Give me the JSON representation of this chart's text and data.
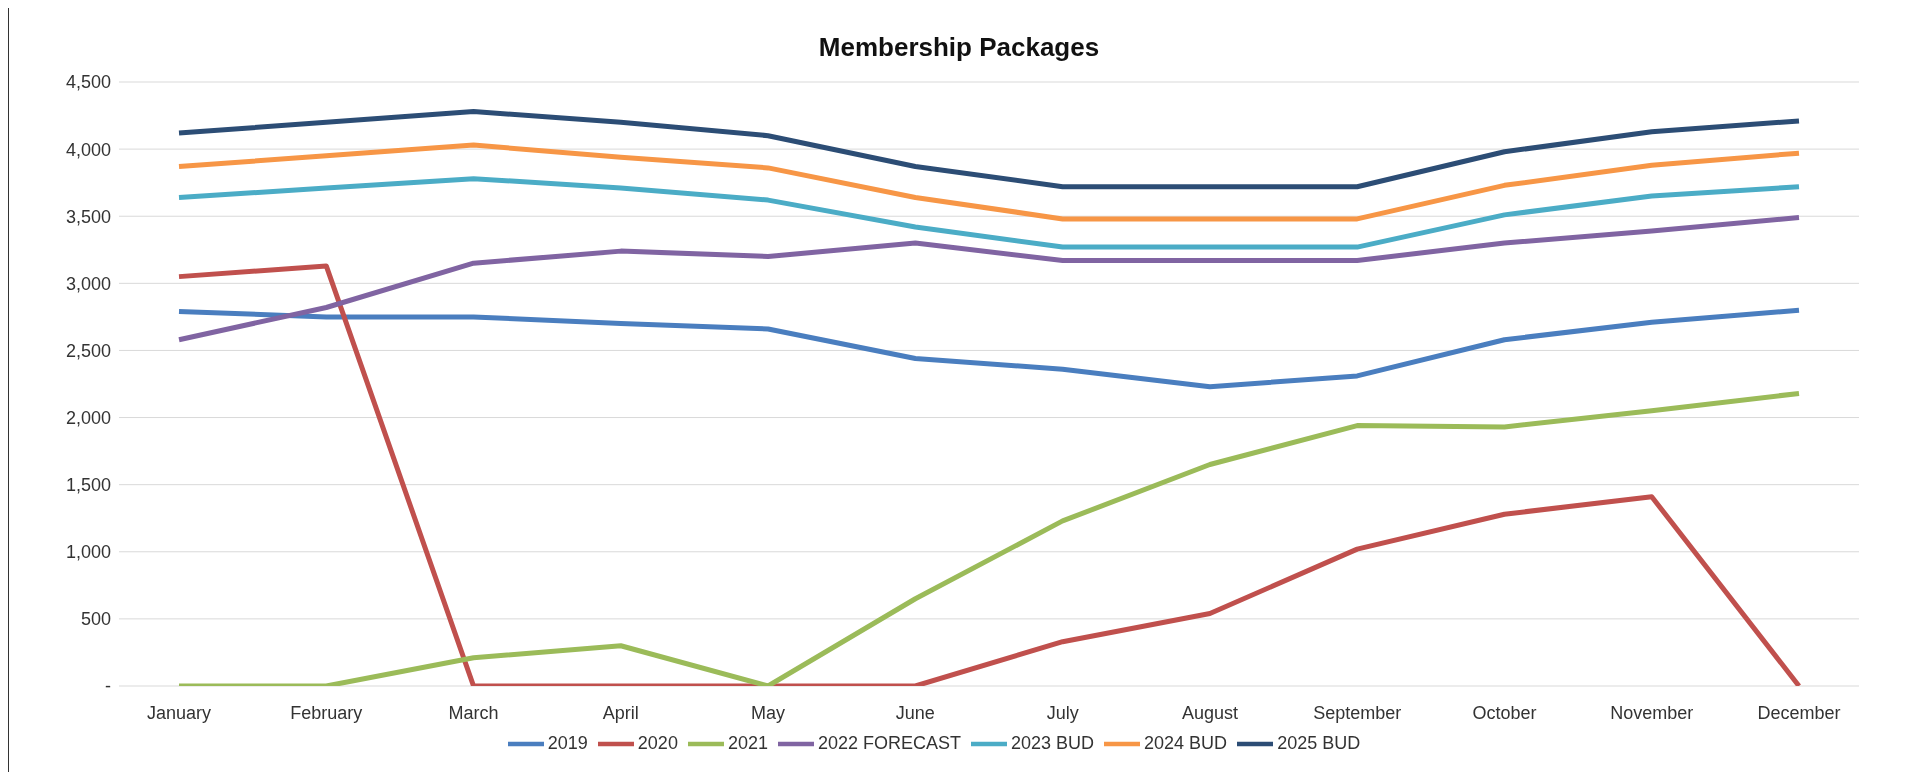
{
  "chart_data": {
    "type": "line",
    "title": "Membership Packages",
    "categories": [
      "January",
      "February",
      "March",
      "April",
      "May",
      "June",
      "July",
      "August",
      "September",
      "October",
      "November",
      "December"
    ],
    "series": [
      {
        "name": "2019",
        "color": "#4a7ebf",
        "values": [
          2790,
          2750,
          2750,
          2700,
          2660,
          2440,
          2360,
          2230,
          2310,
          2580,
          2710,
          2800
        ]
      },
      {
        "name": "2020",
        "color": "#c0504d",
        "values": [
          3050,
          3130,
          0,
          0,
          0,
          0,
          330,
          540,
          1020,
          1280,
          1410,
          0
        ]
      },
      {
        "name": "2021",
        "color": "#9bbb59",
        "values": [
          0,
          0,
          210,
          300,
          0,
          650,
          1230,
          1650,
          1940,
          1930,
          2050,
          2180
        ]
      },
      {
        "name": "2022 FORECAST",
        "color": "#8064a2",
        "values": [
          2580,
          2820,
          3150,
          3240,
          3200,
          3300,
          3170,
          3170,
          3170,
          3300,
          3390,
          3490
        ]
      },
      {
        "name": "2023 BUD",
        "color": "#4bacc6",
        "values": [
          3640,
          3710,
          3780,
          3710,
          3620,
          3420,
          3270,
          3270,
          3270,
          3510,
          3650,
          3720
        ]
      },
      {
        "name": "2024 BUD",
        "color": "#f79646",
        "values": [
          3870,
          3950,
          4030,
          3940,
          3860,
          3640,
          3480,
          3480,
          3480,
          3730,
          3880,
          3970
        ]
      },
      {
        "name": "2025 BUD",
        "color": "#2c4d75",
        "values": [
          4120,
          4200,
          4280,
          4200,
          4100,
          3870,
          3720,
          3720,
          3720,
          3980,
          4130,
          4210
        ]
      }
    ],
    "ylim": [
      0,
      4500
    ],
    "yticks": [
      {
        "value": 0,
        "label": "-"
      },
      500,
      {
        "value": 1000,
        "label": "1,000"
      },
      {
        "value": 1500,
        "label": "1,500"
      },
      {
        "value": 2000,
        "label": "2,000"
      },
      {
        "value": 2500,
        "label": "2,500"
      },
      {
        "value": 3000,
        "label": "3,000"
      },
      {
        "value": 3500,
        "label": "3,500"
      },
      {
        "value": 4000,
        "label": "4,000"
      },
      {
        "value": 4500,
        "label": "4,500"
      }
    ],
    "grid": "y",
    "legend": "bottom",
    "marker": "none",
    "line_style": "solid"
  }
}
